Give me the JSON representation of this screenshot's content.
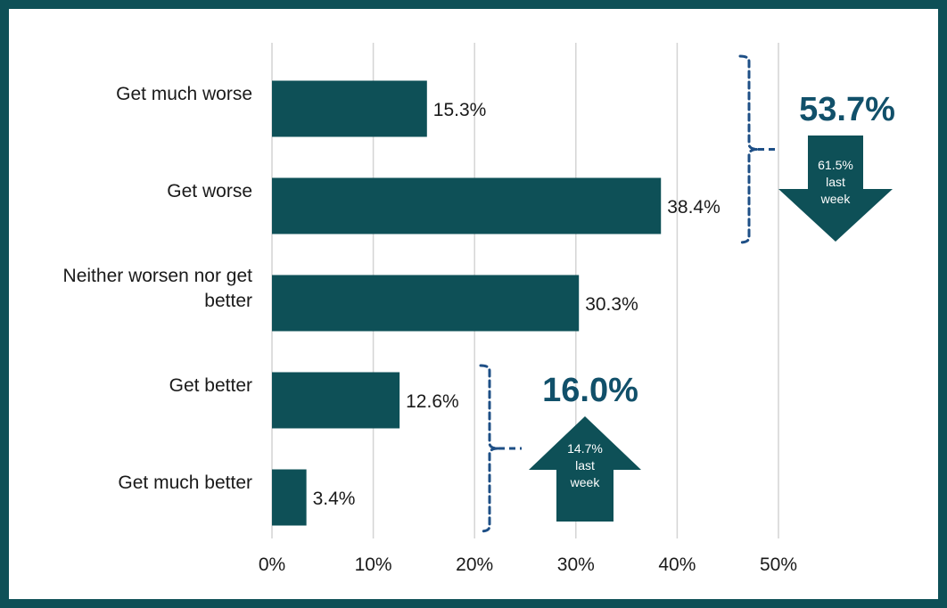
{
  "chart_data": {
    "type": "bar",
    "orientation": "horizontal",
    "categories": [
      [
        "Get much worse"
      ],
      [
        "Get worse"
      ],
      [
        "Neither worsen nor get",
        "better"
      ],
      [
        "Get better"
      ],
      [
        "Get much better"
      ]
    ],
    "values": [
      15.3,
      38.4,
      30.3,
      12.6,
      3.4
    ],
    "value_labels": [
      "15.3%",
      "38.4%",
      "30.3%",
      "12.6%",
      "3.4%"
    ],
    "xlim": [
      0,
      50
    ],
    "x_ticks": [
      0,
      10,
      20,
      30,
      40,
      50
    ],
    "x_tick_labels": [
      "0%",
      "10%",
      "20%",
      "30%",
      "40%",
      "50%"
    ],
    "grid": "vertical",
    "bar_color": "#0e5057",
    "annotations": [
      {
        "total": "53.7%",
        "spans_categories": [
          0,
          1
        ],
        "direction": "down",
        "arrow_lines": [
          "61.5%",
          "last",
          "week"
        ]
      },
      {
        "total": "16.0%",
        "spans_categories": [
          3,
          4
        ],
        "direction": "up",
        "arrow_lines": [
          "14.7%",
          "last",
          "week"
        ]
      }
    ]
  },
  "colors": {
    "frame": "#0e5057",
    "bar": "#0e5057",
    "arrow": "#0e5057",
    "bracket": "#1e4f86",
    "total_text": "#11506a",
    "grid": "#d4d4d4"
  }
}
